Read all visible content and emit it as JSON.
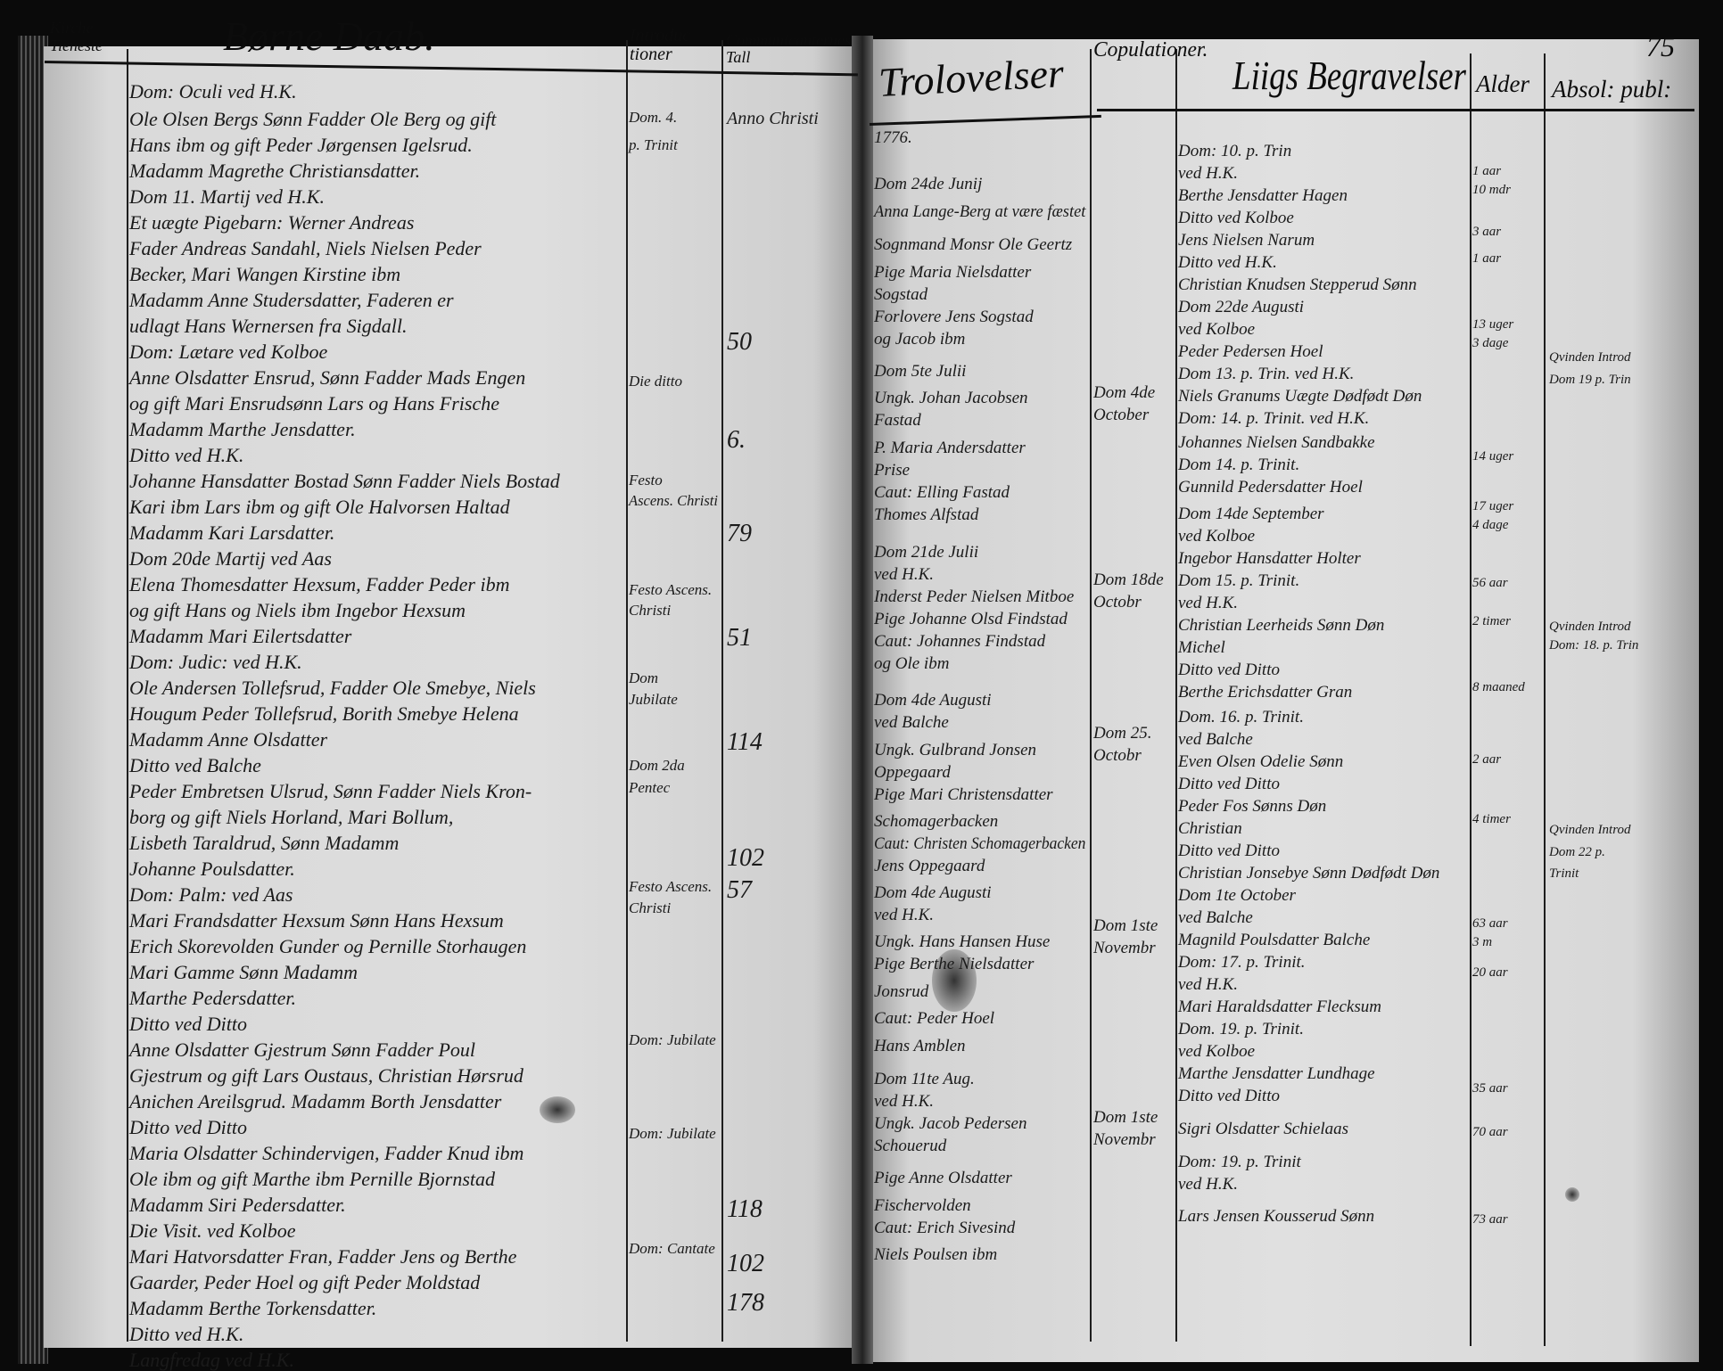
{
  "page_number": "75",
  "left_page": {
    "headers": {
      "kirche_tieneste": "Kirche Tieneste",
      "title": "Børne Daab.",
      "introductioner": "Introduc tioner",
      "communicanter": "Communicanternes Tall"
    },
    "baptisms": [
      "Dom: Oculi ved H.K.",
      "Ole Olsen Bergs Sønn Fadder Ole Berg og gift",
      "Hans ibm og gift Peder Jørgensen Igelsrud.",
      "Madamm Magrethe Christiansdatter.",
      "Dom 11. Martij ved H.K.",
      "Et uægte Pigebarn: Werner Andreas",
      "Fader Andreas Sandahl, Niels Nielsen Peder",
      "Becker, Mari Wangen Kirstine ibm",
      "Madamm Anne Studersdatter, Faderen er",
      "udlagt Hans Wernersen fra Sigdall.",
      "Dom: Lætare ved Kolboe",
      "Anne Olsdatter Ensrud, Sønn Fadder Mads Engen",
      "og gift Mari Ensrudsønn Lars og Hans Frische",
      "Madamm Marthe Jensdatter.",
      "Ditto ved H.K.",
      "Johanne Hansdatter Bostad Sønn Fadder Niels Bostad",
      "Kari ibm Lars ibm og gift Ole Halvorsen Haltad",
      "Madamm Kari Larsdatter.",
      "Dom 20de Martij ved Aas",
      "Elena Thomesdatter Hexsum, Fadder Peder ibm",
      "og gift Hans og Niels ibm Ingebor Hexsum",
      "Madamm Mari Eilertsdatter",
      "Dom: Judic: ved H.K.",
      "Ole Andersen Tollefsrud, Fadder Ole Smebye, Niels",
      "Hougum Peder Tollefsrud, Borith Smebye Helena",
      "Madamm Anne Olsdatter",
      "Ditto ved Balche",
      "Peder Embretsen Ulsrud, Sønn Fadder Niels Kron-",
      "borg og gift Niels Horland, Mari Bollum,",
      "Lisbeth Taraldrud, Sønn  Madamm",
      "Johanne Poulsdatter.",
      "Dom: Palm: ved Aas",
      "Mari Frandsdatter Hexsum Sønn Hans Hexsum",
      "Erich Skorevolden Gunder og Pernille Storhaugen",
      "Mari Gamme Sønn   Madamm",
      "Marthe Pedersdatter.",
      "Ditto ved Ditto",
      "Anne Olsdatter Gjestrum Sønn Fadder Poul",
      "Gjestrum og gift Lars Oustaus, Christian Hørsrud",
      "Anichen Areilsgrud. Madamm Borth Jensdatter",
      "Ditto ved Ditto",
      "Maria Olsdatter Schindervigen, Fadder Knud ibm",
      "Ole ibm og gift Marthe ibm Pernille Bjornstad",
      "Madamm Siri Pedersdatter.",
      "Die Visit. ved Kolboe",
      "Mari Hatvorsdatter Fran, Fadder Jens og Berthe",
      "Gaarder, Peder Hoel og gift Peder Moldstad",
      "Madamm Berthe Torkensdatter.",
      "Ditto ved H.K.",
      "Langfredag ved H.K."
    ],
    "introductions": [
      "Dom. 4.",
      "p. Trinit",
      "Die ditto",
      "Festo",
      "Ascens. Christi",
      "Festo Ascens.",
      "Christi",
      "Dom",
      "Jubilate",
      "Dom 2da",
      "Pentec",
      "Festo Ascens.",
      "Christi",
      "Dom: Jubilate",
      "Dom: Jubilate",
      "Dom: Cantate"
    ],
    "communicants": [
      "Anno Christi",
      "50",
      "6.",
      "79",
      "51",
      "114",
      "102",
      "57",
      "118",
      "102",
      "178"
    ]
  },
  "right_page": {
    "headers": {
      "trolovelser": "Trolovelser",
      "copulationer": "Copulationer.",
      "begravelser": "Liigs Begravelser",
      "alder": "Alder",
      "absolution": "Absol: publ:"
    },
    "betrothals": [
      "1776.",
      "Dom 24de Junij",
      "Anna Lange-Berg at være fæstet",
      "Sognmand Monsr Ole Geertz",
      "Pige Maria Nielsdatter",
      "Sogstad",
      "Forlovere Jens Sogstad",
      "og Jacob ibm",
      "Dom 5te Julii",
      "Ungk. Johan Jacobsen",
      "Fastad",
      "P. Maria Andersdatter",
      "Prise",
      "Caut: Elling Fastad",
      "Thomes Alfstad",
      "Dom 21de Julii",
      "ved H.K.",
      "Inderst Peder Nielsen Mitboe",
      "Pige Johanne Olsd Findstad",
      "Caut: Johannes Findstad",
      "og Ole ibm",
      "Dom 4de Augusti",
      "ved Balche",
      "Ungk. Gulbrand Jonsen",
      "Oppegaard",
      "Pige Mari Christensdatter",
      "Schomagerbacken",
      "Caut: Christen Schomagerbacken",
      "Jens Oppegaard",
      "Dom 4de Augusti",
      "ved H.K.",
      "Ungk. Hans Hansen Huse",
      "Pige Berthe Nielsdatter",
      "Jonsrud",
      "Caut: Peder Hoel",
      "Hans Amblen",
      "Dom 11te Aug.",
      "ved H.K.",
      "Ungk. Jacob Pedersen",
      "Schouerud",
      "Pige Anne Olsdatter",
      "Fischervolden",
      "Caut: Erich Sivesind",
      "Niels Poulsen ibm"
    ],
    "copulations": [
      "Dom 4de",
      "October",
      "Dom 18de",
      "Octobr",
      "Dom 25.",
      "Octobr",
      "Dom 1ste",
      "Novembr",
      "Dom 1ste",
      "Novembr"
    ],
    "burials": [
      "Dom: 10. p. Trin",
      "ved H.K.",
      "Berthe Jensdatter Hagen",
      "Ditto ved Kolboe",
      "Jens Nielsen Narum",
      "Ditto ved H.K.",
      "Christian Knudsen Stepperud Sønn",
      "Dom 22de Augusti",
      "ved Kolboe",
      "Peder Pedersen Hoel",
      "Dom 13. p. Trin. ved H.K.",
      "Niels Granums Uægte Dødfødt Døn",
      "Dom: 14. p. Trinit. ved H.K.",
      "Johannes Nielsen Sandbakke",
      "Dom 14. p. Trinit.",
      "Gunnild Pedersdatter Hoel",
      "Dom 14de September",
      "ved Kolboe",
      "Ingebor Hansdatter Holter",
      "Dom 15. p. Trinit.",
      "ved H.K.",
      "Christian Leerheids Sønn Døn",
      "Michel",
      "Ditto ved Ditto",
      "Berthe Erichsdatter Gran",
      "Dom. 16. p. Trinit.",
      "ved Balche",
      "Even Olsen Odelie Sønn",
      "Ditto ved Ditto",
      "Peder Fos Sønns Døn",
      "Christian",
      "Ditto ved Ditto",
      "Christian Jonsebye Sønn Dødfødt Døn",
      "Dom 1te October",
      "ved Balche",
      "Magnild Poulsdatter Balche",
      "Dom: 17. p. Trinit.",
      "ved H.K.",
      "Mari Haraldsdatter Flecksum",
      "Dom. 19. p. Trinit.",
      "ved Kolboe",
      "Marthe Jensdatter Lundhage",
      "Ditto ved Ditto",
      "Sigri Olsdatter Schielaas",
      "Dom: 19. p. Trinit",
      "ved H.K.",
      "Lars Jensen Kousserud Sønn"
    ],
    "ages": [
      "1 aar",
      "10 mdr",
      "3 aar",
      "1 aar",
      "13 uger",
      "3 dage",
      "14 uger",
      "17 uger",
      "4 dage",
      "56 aar",
      "2 timer",
      "8 maaned",
      "2 aar",
      "4 timer",
      "63 aar",
      "3 m",
      "20 aar",
      "35 aar",
      "70 aar",
      "73 aar"
    ],
    "absolutions": [
      "Qvinden Introd",
      "Dom 19 p. Trin",
      "Qvinden Introd",
      "Dom: 18. p. Trin",
      "Qvinden Introd",
      "Dom 22 p.",
      "Trinit"
    ]
  }
}
